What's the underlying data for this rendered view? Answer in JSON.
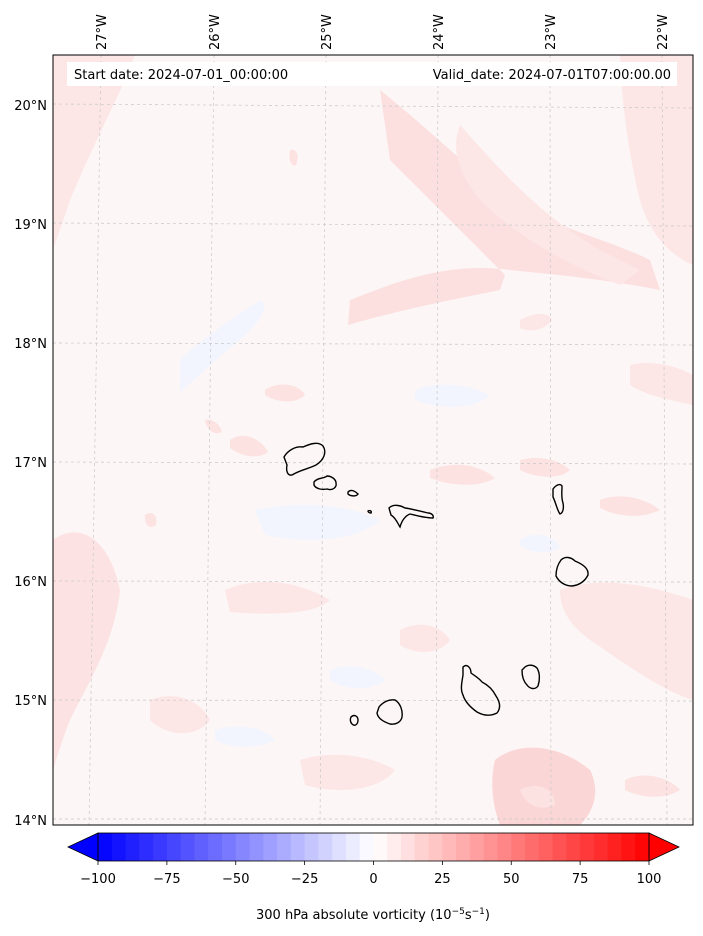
{
  "map": {
    "lon_ticks": [
      "27°W",
      "26°W",
      "25°W",
      "24°W",
      "23°W",
      "22°W"
    ],
    "lat_ticks": [
      "20°N",
      "19°N",
      "18°N",
      "17°N",
      "16°N",
      "15°N",
      "14°N"
    ],
    "start_date": "Start date: 2024-07-01_00:00:00",
    "valid_date": "Valid_date: 2024-07-01T07:00:00.00"
  },
  "colorbar": {
    "tick_values": [
      -100,
      -75,
      -50,
      -25,
      0,
      25,
      50,
      75,
      100
    ],
    "tick_labels": [
      "−100",
      "−75",
      "−50",
      "−25",
      "0",
      "25",
      "50",
      "75",
      "100"
    ],
    "label_main": "300 hPa absolute vorticity (10",
    "label_exp1": "−5",
    "label_mid": "s",
    "label_exp2": "−1",
    "label_end": ")",
    "min_color": "#0000ff",
    "mid_color": "#ffffff",
    "max_color": "#ff0000"
  },
  "colors": {
    "background_field": "#fdf6f6",
    "positive_patch": "#fde4e4",
    "positive_patch_strong": "#fbd2d2",
    "negative_patch": "#f2f4fe",
    "coastline": "#000000",
    "gridline": "#c8c8c8"
  }
}
